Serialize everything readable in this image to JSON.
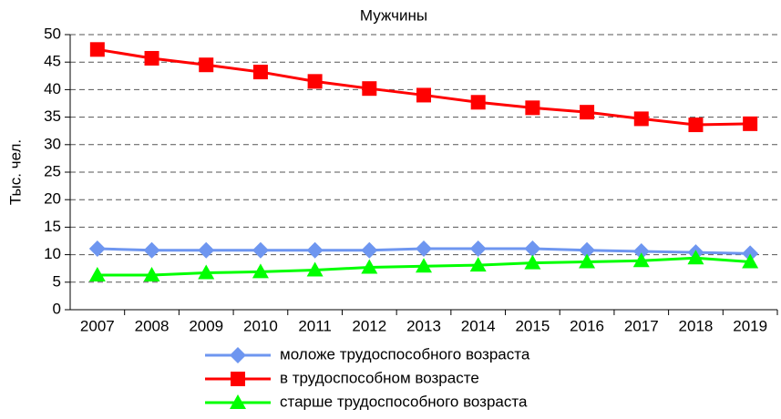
{
  "chart_data": {
    "type": "line",
    "title": "Мужчины",
    "y_label": "Тыс. чел.",
    "categories": [
      "2007",
      "2008",
      "2009",
      "2010",
      "2011",
      "2012",
      "2013",
      "2014",
      "2015",
      "2016",
      "2017",
      "2018",
      "2019"
    ],
    "series": [
      {
        "name": "моложе трудоспособного возраста",
        "color": "#6e96f0",
        "marker": "diamond",
        "values": [
          11.1,
          10.8,
          10.8,
          10.8,
          10.8,
          10.8,
          11.1,
          11.1,
          11.1,
          10.8,
          10.6,
          10.4,
          10.2
        ]
      },
      {
        "name": "в трудоспособном возрасте",
        "color": "#ff0000",
        "marker": "square",
        "values": [
          47.3,
          45.7,
          44.5,
          43.2,
          41.5,
          40.2,
          39.0,
          37.7,
          36.7,
          35.9,
          34.7,
          33.6,
          33.8
        ]
      },
      {
        "name": "старше трудоспособного возраста",
        "color": "#00ff00",
        "marker": "triangle",
        "values": [
          6.3,
          6.3,
          6.7,
          6.9,
          7.2,
          7.7,
          7.9,
          8.1,
          8.5,
          8.7,
          8.9,
          9.4,
          8.7
        ]
      }
    ],
    "ylim": [
      0,
      50
    ],
    "yticks": [
      0,
      5,
      10,
      15,
      20,
      25,
      30,
      35,
      40,
      45,
      50
    ],
    "grid": true,
    "legend": "bottom"
  }
}
